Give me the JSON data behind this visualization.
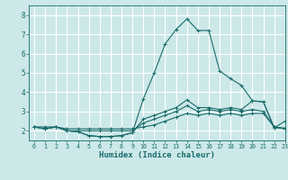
{
  "title": "",
  "xlabel": "Humidex (Indice chaleur)",
  "ylabel": "",
  "xlim": [
    -0.5,
    23
  ],
  "ylim": [
    1.5,
    8.5
  ],
  "yticks": [
    2,
    3,
    4,
    5,
    6,
    7,
    8
  ],
  "xticks": [
    0,
    1,
    2,
    3,
    4,
    5,
    6,
    7,
    8,
    9,
    10,
    11,
    12,
    13,
    14,
    15,
    16,
    17,
    18,
    19,
    20,
    21,
    22,
    23
  ],
  "bg_color": "#cce8e8",
  "line_color": "#1a6b6b",
  "grid_color": "#ffffff",
  "lines": [
    {
      "x": [
        0,
        1,
        2,
        3,
        4,
        5,
        6,
        7,
        8,
        9,
        10,
        11,
        12,
        13,
        14,
        15,
        16,
        17,
        18,
        19,
        20,
        21,
        22,
        23
      ],
      "y": [
        2.2,
        2.1,
        2.2,
        2.0,
        1.95,
        1.75,
        1.7,
        1.7,
        1.75,
        1.9,
        3.65,
        5.0,
        6.5,
        7.25,
        7.8,
        7.2,
        7.2,
        5.1,
        4.7,
        4.35,
        3.55,
        3.5,
        2.15,
        2.5
      ]
    },
    {
      "x": [
        0,
        1,
        2,
        3,
        4,
        5,
        6,
        7,
        8,
        9,
        10,
        11,
        12,
        13,
        14,
        15,
        16,
        17,
        18,
        19,
        20,
        21,
        22,
        23
      ],
      "y": [
        2.2,
        2.1,
        2.2,
        2.0,
        1.95,
        1.75,
        1.7,
        1.7,
        1.75,
        1.9,
        2.6,
        2.8,
        3.0,
        3.2,
        3.6,
        3.2,
        3.2,
        3.1,
        3.2,
        3.1,
        3.55,
        3.5,
        2.15,
        2.15
      ]
    },
    {
      "x": [
        0,
        1,
        2,
        3,
        4,
        5,
        6,
        7,
        8,
        9,
        10,
        11,
        12,
        13,
        14,
        15,
        16,
        17,
        18,
        19,
        20,
        21,
        22,
        23
      ],
      "y": [
        2.2,
        2.1,
        2.2,
        2.0,
        2.0,
        2.0,
        2.0,
        2.0,
        2.0,
        2.0,
        2.4,
        2.6,
        2.8,
        3.0,
        3.3,
        3.0,
        3.1,
        3.0,
        3.1,
        3.0,
        3.1,
        3.0,
        2.2,
        2.1
      ]
    },
    {
      "x": [
        0,
        1,
        2,
        3,
        4,
        5,
        6,
        7,
        8,
        9,
        10,
        11,
        12,
        13,
        14,
        15,
        16,
        17,
        18,
        19,
        20,
        21,
        22,
        23
      ],
      "y": [
        2.2,
        2.2,
        2.2,
        2.1,
        2.1,
        2.1,
        2.1,
        2.1,
        2.1,
        2.1,
        2.2,
        2.3,
        2.5,
        2.7,
        2.9,
        2.8,
        2.9,
        2.8,
        2.9,
        2.8,
        2.9,
        2.9,
        2.2,
        2.1
      ]
    }
  ]
}
